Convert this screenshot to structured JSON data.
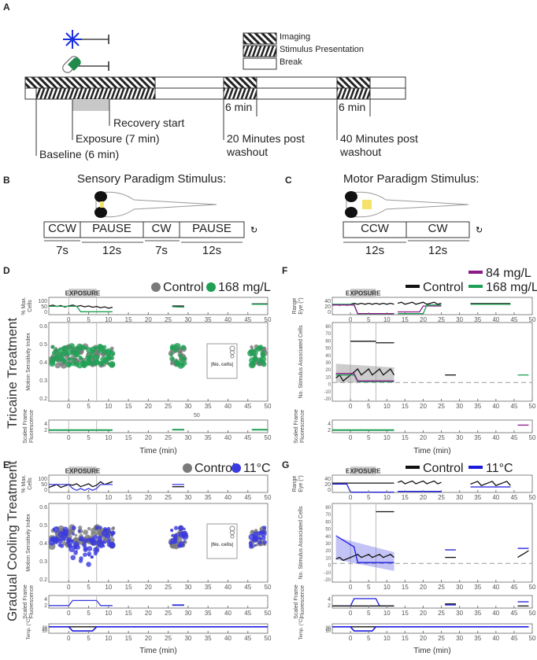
{
  "panel_labels": {
    "A": "A",
    "B": "B",
    "C": "C",
    "D": "D",
    "E": "E",
    "F": "F",
    "G": "G"
  },
  "row_labels": {
    "tricaine": "Tricaine Treatment",
    "cooling": "Gradual Cooling Treatment"
  },
  "timeline": {
    "legend": {
      "imaging": "Imaging",
      "stimulus": "Stimulus Presentation",
      "break": "Break"
    },
    "annotations": {
      "recovery": "Recovery start",
      "exposure": "Exposure (7 min)",
      "baseline": "Baseline (6 min)",
      "wash20": "20 Minutes post",
      "wash40": "40 Minutes post",
      "washout": "washout",
      "six_min": "6 min"
    },
    "icons": {
      "snowflake": "snowflake-icon",
      "pill": "pill-icon"
    },
    "colors": {
      "snowflake": "#1a2fe0",
      "pill": "#1f8a4c"
    }
  },
  "sensory": {
    "title": "Sensory Paradigm Stimulus:",
    "segments": [
      "CCW",
      "PAUSE",
      "CW",
      "PAUSE"
    ],
    "durations": [
      "7s",
      "12s",
      "7s",
      "12s"
    ]
  },
  "motor": {
    "title": "Motor Paradigm Stimulus:",
    "segments": [
      "CCW",
      "CW"
    ],
    "durations": [
      "12s",
      "12s"
    ]
  },
  "common": {
    "exposure_label": "EXPOSURE",
    "time_label": "Time (min)",
    "x_ticks": [
      "0",
      "5",
      "10",
      "15",
      "20",
      "25",
      "30",
      "35",
      "40",
      "45",
      "50"
    ],
    "legend_box": "|No. cells|",
    "stray_tick": "50"
  },
  "panelD": {
    "legend": [
      "Control",
      "168 mg/L"
    ],
    "colors": [
      "#7a7a7a",
      "#1fa055"
    ],
    "ylabels": {
      "top": "% Max. Cells",
      "mid": "Motion Sensitivity Index",
      "bot": "Scaled Frame Fluorescence"
    },
    "yticks_top": [
      "100",
      "50",
      "0"
    ],
    "yticks_mid": [
      "0.6",
      "0.5",
      "0.4",
      "0.3",
      "0.2"
    ],
    "yticks_bot": [
      "4",
      "2"
    ],
    "sig": "*"
  },
  "panelE": {
    "legend": [
      "Control",
      "11°C"
    ],
    "colors": [
      "#7a7a7a",
      "#3a3adf"
    ],
    "ylabels": {
      "top": "% Max. Cells",
      "mid": "Motion Sensitivity Index",
      "bot": "Scaled Frame Fluorescence",
      "temp": "Temp. (°C)"
    },
    "yticks_top": [
      "100",
      "50",
      "0"
    ],
    "yticks_mid": [
      "0.6",
      "0.5",
      "0.4",
      "0.3",
      "0.2"
    ],
    "yticks_bot": [
      "4",
      "2"
    ],
    "yticks_temp": [
      "30",
      "20",
      "10"
    ],
    "sig": [
      "*",
      "***"
    ]
  },
  "panelF": {
    "legend": [
      "84 mg/L",
      "Control",
      "168 mg/L"
    ],
    "colors": [
      "#8a1a8a",
      "#111111",
      "#1fa055"
    ],
    "ylabels": {
      "top": "Range Eye (°)",
      "mid": "No. Stimulus Associated Cells",
      "bot": "Scaled Frame Fluorescence"
    },
    "yticks_top": [
      "40",
      "20",
      "0"
    ],
    "yticks_mid": [
      "80",
      "70",
      "60",
      "50",
      "40",
      "30",
      "20",
      "10",
      "0",
      "-10",
      "-20"
    ],
    "yticks_bot": [
      "4",
      "2"
    ],
    "sig": [
      "***",
      "***",
      "*",
      "***"
    ]
  },
  "panelG": {
    "legend": [
      "Control",
      "11°C"
    ],
    "colors": [
      "#111111",
      "#1a1adf"
    ],
    "ylabels": {
      "top": "Range Eye (°)",
      "mid": "No. Stimulus Associated Cells",
      "bot": "Scaled Frame Fluorescence",
      "temp": "Temp. (°C)"
    },
    "yticks_top": [
      "40",
      "20",
      "0"
    ],
    "yticks_mid": [
      "80",
      "70",
      "60",
      "50",
      "40",
      "30",
      "20",
      "10",
      "0",
      "-10",
      "-20"
    ],
    "yticks_bot": [
      "4",
      "2"
    ],
    "yticks_temp": [
      "30",
      "20",
      "10"
    ],
    "sig": [
      "***",
      "***",
      "*"
    ]
  }
}
